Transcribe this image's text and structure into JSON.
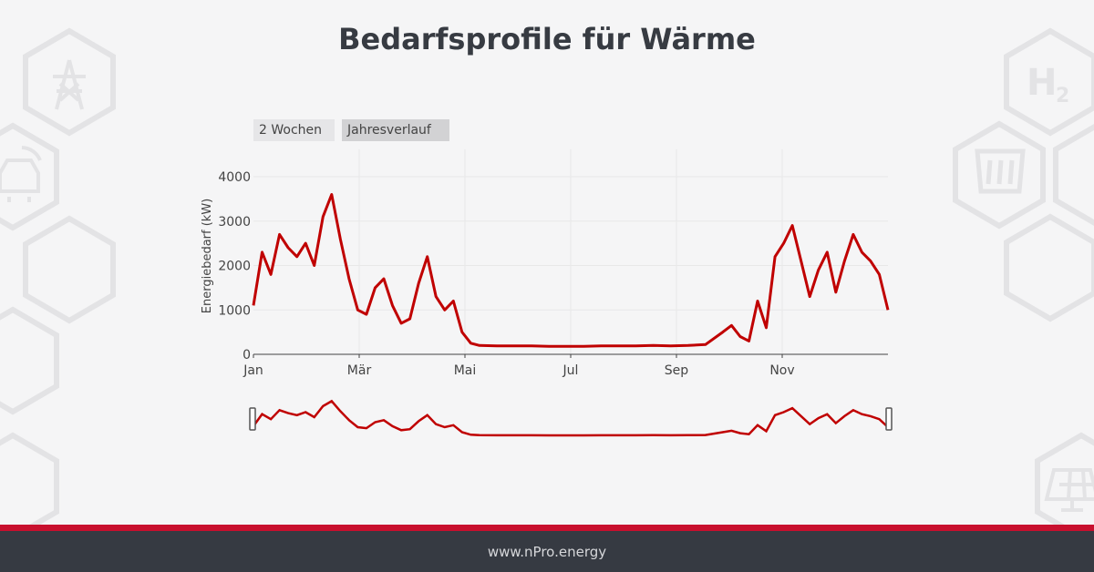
{
  "title": "Bedarfsprofile für Wärme",
  "range_buttons": [
    "2 Wochen",
    "Jahresverlauf"
  ],
  "footer": "www.nPro.energy",
  "colors": {
    "series": "#c00000",
    "accent": "#c8102e",
    "footer_bg": "#363a42"
  },
  "background_icons": [
    "power-pylon-icon",
    "electric-car-icon",
    "h2-icon",
    "fire-hose-icon",
    "solar-panel-icon"
  ],
  "chart_data": {
    "type": "line",
    "title": "",
    "xlabel": "",
    "ylabel": "Energiebedarf (kW)",
    "ylim": [
      0,
      4000
    ],
    "yticks": [
      0,
      1000,
      2000,
      3000,
      4000
    ],
    "xticks": [
      "Jan",
      "Mär",
      "Mai",
      "Jul",
      "Sep",
      "Nov"
    ],
    "xlim_days": [
      0,
      365
    ],
    "grid": true,
    "legend": "none",
    "range_slider": true,
    "series": [
      {
        "day": [
          0,
          5,
          10,
          15,
          20,
          25,
          30,
          35,
          40,
          45,
          50,
          55,
          60,
          65,
          70,
          75,
          80,
          85,
          90,
          95,
          100,
          105,
          110,
          115,
          120,
          125,
          130,
          140,
          150,
          160,
          170,
          180,
          190,
          200,
          210,
          220,
          230,
          240,
          250,
          260,
          270,
          275,
          280,
          285,
          290,
          295,
          300,
          305,
          310,
          315,
          320,
          325,
          330,
          335,
          340,
          345,
          350,
          355,
          360,
          365
        ],
        "values": [
          1100,
          2300,
          1800,
          2700,
          2400,
          2200,
          2500,
          2000,
          3100,
          3600,
          2600,
          1700,
          1000,
          900,
          1500,
          1700,
          1100,
          700,
          800,
          1600,
          2200,
          1300,
          1000,
          1200,
          500,
          250,
          200,
          190,
          190,
          190,
          180,
          180,
          180,
          190,
          190,
          190,
          200,
          190,
          200,
          220,
          500,
          650,
          400,
          300,
          1200,
          600,
          2200,
          2500,
          2900,
          2100,
          1300,
          1900,
          2300,
          1400,
          2100,
          2700,
          2300,
          2100,
          1800,
          1000
        ]
      }
    ]
  }
}
